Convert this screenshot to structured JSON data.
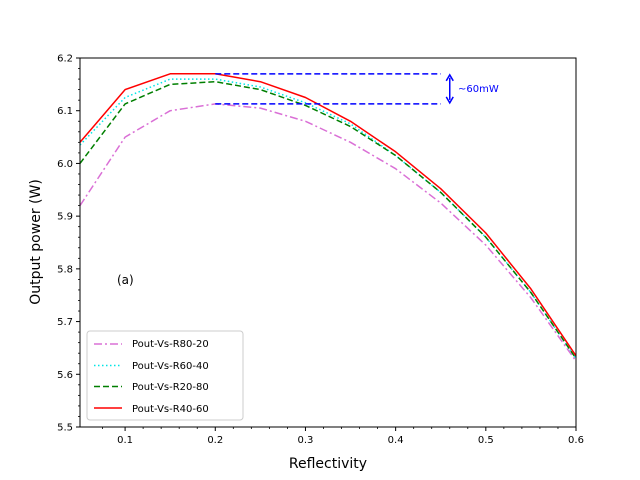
{
  "chart_data": {
    "type": "line",
    "xlabel": "Reflectivity",
    "ylabel": "Output power (W)",
    "xlim": [
      0.05,
      0.6
    ],
    "ylim": [
      5.5,
      6.2
    ],
    "x_ticks": [
      0.1,
      0.2,
      0.3,
      0.4,
      0.5,
      0.6
    ],
    "x_tick_labels": [
      "0.1",
      "0.2",
      "0.3",
      "0.4",
      "0.5",
      "0.6"
    ],
    "y_ticks": [
      5.5,
      5.6,
      5.7,
      5.8,
      5.9,
      6.0,
      6.1,
      6.2
    ],
    "y_tick_labels": [
      "5.5",
      "5.6",
      "5.7",
      "5.8",
      "5.9",
      "6.0",
      "6.1",
      "6.2"
    ],
    "panel_label": "(a)",
    "legend_position": "bottom-left",
    "x": [
      0.05,
      0.1,
      0.15,
      0.2,
      0.25,
      0.3,
      0.35,
      0.4,
      0.45,
      0.5,
      0.55,
      0.6
    ],
    "series": [
      {
        "name": "Pout-Vs-R80-20",
        "color": "#da70d6",
        "style": "dashdot",
        "values": [
          5.92,
          6.05,
          6.1,
          6.113,
          6.105,
          6.08,
          6.04,
          5.99,
          5.925,
          5.845,
          5.745,
          5.625
        ]
      },
      {
        "name": "Pout-Vs-R60-40",
        "color": "#00e5e5",
        "style": "dotted",
        "values": [
          6.035,
          6.125,
          6.16,
          6.16,
          6.145,
          6.115,
          6.075,
          6.015,
          5.945,
          5.86,
          5.755,
          5.63
        ]
      },
      {
        "name": "Pout-Vs-R20-80",
        "color": "#007f00",
        "style": "dashed",
        "values": [
          6.0,
          6.113,
          6.15,
          6.155,
          6.14,
          6.11,
          6.07,
          6.015,
          5.945,
          5.86,
          5.755,
          5.63
        ]
      },
      {
        "name": "Pout-Vs-R40-60",
        "color": "#ff0000",
        "style": "solid",
        "values": [
          6.04,
          6.14,
          6.17,
          6.17,
          6.155,
          6.125,
          6.08,
          6.022,
          5.952,
          5.868,
          5.762,
          5.635
        ]
      }
    ],
    "annotation": {
      "text": "~60mW",
      "color": "#0000ff",
      "x_start": 0.2,
      "x_end": 0.45,
      "x_arrow": 0.46,
      "y_top": 6.17,
      "y_bottom": 6.113
    }
  }
}
